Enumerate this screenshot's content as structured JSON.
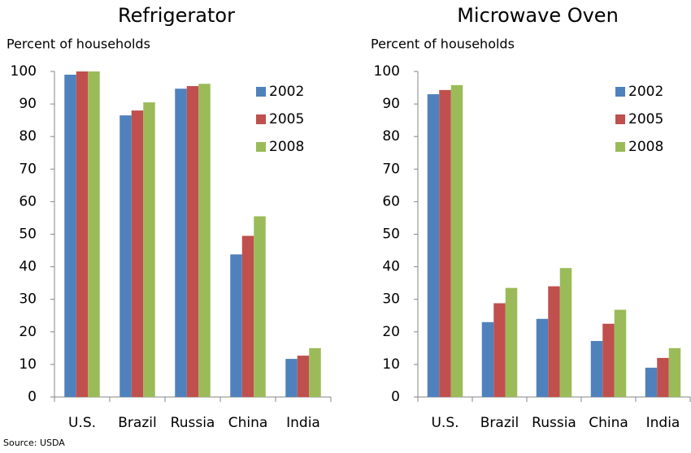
{
  "chart_data": [
    {
      "type": "bar",
      "title": "Refrigerator",
      "y_label": "Percent of households",
      "categories": [
        "U.S.",
        "Brazil",
        "Russia",
        "China",
        "India"
      ],
      "series": [
        {
          "name": "2002",
          "color": "#4f81bd",
          "values": [
            99,
            86.5,
            94.7,
            43.8,
            11.7
          ]
        },
        {
          "name": "2005",
          "color": "#c0504d",
          "values": [
            100,
            88,
            95.5,
            49.5,
            12.7
          ]
        },
        {
          "name": "2008",
          "color": "#9bbb59",
          "values": [
            100,
            90.5,
            96.2,
            55.5,
            15
          ]
        }
      ],
      "ylim": [
        0,
        100
      ],
      "yticks": [
        0,
        10,
        20,
        30,
        40,
        50,
        60,
        70,
        80,
        90,
        100
      ],
      "grid": false,
      "legend": "upper-right"
    },
    {
      "type": "bar",
      "title": "Microwave Oven",
      "y_label": "Percent of households",
      "categories": [
        "U.S.",
        "Brazil",
        "Russia",
        "China",
        "India"
      ],
      "series": [
        {
          "name": "2002",
          "color": "#4f81bd",
          "values": [
            93,
            23,
            24,
            17.2,
            9
          ]
        },
        {
          "name": "2005",
          "color": "#c0504d",
          "values": [
            94.3,
            28.8,
            34,
            22.5,
            12
          ]
        },
        {
          "name": "2008",
          "color": "#9bbb59",
          "values": [
            95.8,
            33.5,
            39.6,
            26.8,
            15
          ]
        }
      ],
      "ylim": [
        0,
        100
      ],
      "yticks": [
        0,
        10,
        20,
        30,
        40,
        50,
        60,
        70,
        80,
        90,
        100
      ],
      "grid": false,
      "legend": "upper-right"
    }
  ],
  "source": "Source: USDA"
}
